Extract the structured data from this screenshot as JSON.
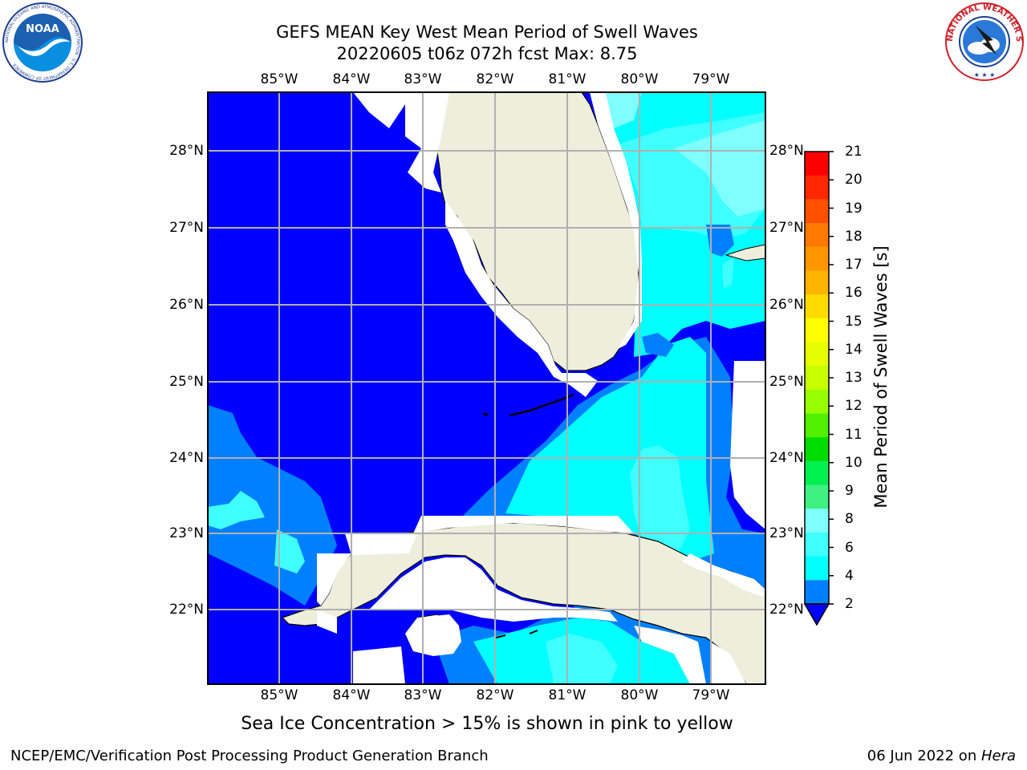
{
  "header": {
    "title_line1": "GEFS MEAN Key West Mean Period of Swell Waves",
    "title_line2": "20220605 t06z 072h fcst   Max: 8.75"
  },
  "logos": {
    "left": {
      "text": "NOAA",
      "ring_text": "NATIONAL OCEANIC AND ATMOSPHERIC ADMINISTRATION · U.S. DEPARTMENT OF COMMERCE"
    },
    "right": {
      "ring_text": "NATIONAL WEATHER SERVICE"
    }
  },
  "map": {
    "lon_labels": [
      "85°W",
      "84°W",
      "83°W",
      "82°W",
      "81°W",
      "80°W",
      "79°W"
    ],
    "lat_labels": [
      "28°N",
      "27°N",
      "26°N",
      "25°N",
      "24°N",
      "23°N",
      "22°N"
    ],
    "colors": {
      "deep_blue": "#0000ff",
      "mid_blue": "#0080ff",
      "cyan": "#00ffff",
      "light_cyan": "#40ffff",
      "pale_cyan": "#80ffff",
      "land": "#eeeedd",
      "grid": "#b0b0b0"
    }
  },
  "colorbar": {
    "ticks": [
      "21",
      "20",
      "19",
      "18",
      "17",
      "16",
      "15",
      "14",
      "13",
      "12",
      "11",
      "10",
      "9",
      "8",
      "6",
      "4",
      "2"
    ],
    "label": "Mean Period of Swell Waves [s]",
    "colors_top_to_bottom": [
      "#ff0000",
      "#ff2800",
      "#ff5000",
      "#ff7800",
      "#ff9600",
      "#ffb400",
      "#ffdc00",
      "#ffff00",
      "#e6ff00",
      "#c8ff00",
      "#96ff00",
      "#50f000",
      "#00dc00",
      "#00f050",
      "#40f080",
      "#80ffff",
      "#40ffff",
      "#00ffff",
      "#0080ff"
    ],
    "under_color": "#0000ff"
  },
  "caption": "Sea Ice Concentration > 15% is shown in pink to yellow",
  "footer": {
    "left": "NCEP/EMC/Verification Post Processing Product Generation Branch",
    "date": "06 Jun 2022 on ",
    "machine": "Hera"
  }
}
